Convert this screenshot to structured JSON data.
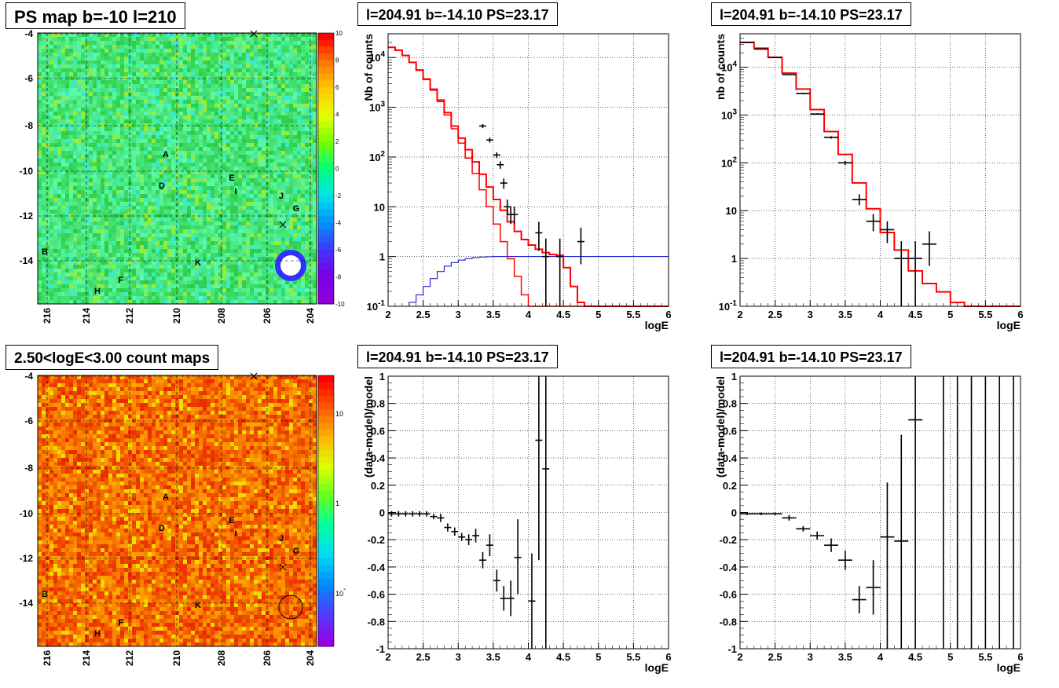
{
  "maps": [
    {
      "title": "PS map b=-10 l=210",
      "yticks": [
        "-4",
        "-6",
        "-8",
        "-10",
        "-12",
        "-14"
      ],
      "xticks": [
        "216",
        "214",
        "212",
        "210",
        "208",
        "206",
        "204"
      ],
      "colorbar": [
        "10",
        "8",
        "6",
        "4",
        "2",
        "0",
        "-2",
        "-4",
        "-6",
        "-8",
        "-10"
      ],
      "palette": "green",
      "sources": [
        "A",
        "D",
        "E",
        "I",
        "J",
        "G",
        "B",
        "K",
        "F",
        "H"
      ]
    },
    {
      "title": "2.50<logE<3.00 count maps",
      "yticks": [
        "-4",
        "-6",
        "-8",
        "-10",
        "-12",
        "-14"
      ],
      "xticks": [
        "216",
        "214",
        "212",
        "210",
        "208",
        "206",
        "204"
      ],
      "colorbar": [
        "10",
        "1",
        "10^-1"
      ],
      "palette": "red",
      "sources": [
        "A",
        "D",
        "E",
        "I",
        "J",
        "G",
        "B",
        "K",
        "F",
        "H"
      ]
    }
  ],
  "chart_data": [
    {
      "type": "line",
      "title": "l=204.91 b=-14.10 PS=23.17",
      "xlabel": "logE",
      "ylabel": "Nb of counts",
      "xlim": [
        2,
        6
      ],
      "ylim": [
        0.1,
        30000
      ],
      "yscale": "log",
      "xticks": [
        "2",
        "2.5",
        "3",
        "3.5",
        "4",
        "4.5",
        "5",
        "5.5",
        "6"
      ],
      "yticks": [
        "10^-1",
        "1",
        "10",
        "10^2",
        "10^3",
        "10^4"
      ],
      "grid": true,
      "model_steps": {
        "x": [
          2.0,
          2.1,
          2.2,
          2.3,
          2.4,
          2.5,
          2.6,
          2.7,
          2.8,
          2.9,
          3.0,
          3.1,
          3.2,
          3.3,
          3.4,
          3.5,
          3.6,
          3.7,
          3.8,
          3.9,
          4.0,
          4.1,
          4.2,
          4.3,
          4.4,
          4.5,
          4.6,
          4.7,
          4.8,
          6.0
        ],
        "y": [
          16000,
          14000,
          11000,
          8000,
          5500,
          3600,
          2200,
          1300,
          700,
          370,
          190,
          95,
          47,
          22,
          10,
          4.5,
          2,
          0.9,
          0.4,
          0.17,
          0.1,
          0.1,
          0.1,
          0.1,
          0.1,
          0.1,
          0.1,
          0.1,
          0.1,
          0.1
        ]
      },
      "red_steps": {
        "x": [
          2.0,
          2.1,
          2.2,
          2.3,
          2.4,
          2.5,
          2.6,
          2.7,
          2.8,
          2.9,
          3.0,
          3.1,
          3.2,
          3.3,
          3.4,
          3.5,
          3.6,
          3.7,
          3.8,
          3.9,
          4.0,
          4.1,
          4.2,
          4.3,
          4.4,
          4.5,
          4.6,
          4.7,
          4.8,
          6.0
        ],
        "y": [
          16000,
          14000,
          11000,
          8000,
          5600,
          3700,
          2300,
          1400,
          780,
          420,
          240,
          140,
          80,
          45,
          25,
          14,
          8.5,
          5,
          3.2,
          2.2,
          1.7,
          1.4,
          1.2,
          1.1,
          1.05,
          0.6,
          0.25,
          0.12,
          0.1,
          0.1
        ]
      },
      "blue_steps": {
        "x": [
          2.0,
          2.1,
          2.2,
          2.3,
          2.4,
          2.5,
          2.6,
          2.7,
          2.8,
          2.9,
          3.0,
          3.1,
          3.2,
          3.3,
          3.4,
          3.5,
          6.0
        ],
        "y": [
          0.1,
          0.1,
          0.1,
          0.12,
          0.17,
          0.25,
          0.36,
          0.5,
          0.64,
          0.76,
          0.85,
          0.91,
          0.95,
          0.98,
          0.99,
          1.0,
          1.0
        ]
      },
      "data_points": [
        {
          "x": 3.35,
          "y": 420,
          "xerr": 0.05,
          "ylo": 380,
          "yhi": 460
        },
        {
          "x": 3.45,
          "y": 220,
          "xerr": 0.05,
          "ylo": 195,
          "yhi": 245
        },
        {
          "x": 3.55,
          "y": 110,
          "xerr": 0.05,
          "ylo": 95,
          "yhi": 125
        },
        {
          "x": 3.6,
          "y": 70,
          "xerr": 0.05,
          "ylo": 58,
          "yhi": 82
        },
        {
          "x": 3.65,
          "y": 30,
          "xerr": 0.05,
          "ylo": 23,
          "yhi": 37
        },
        {
          "x": 3.7,
          "y": 10,
          "xerr": 0.05,
          "ylo": 7,
          "yhi": 14
        },
        {
          "x": 3.75,
          "y": 7,
          "xerr": 0.05,
          "ylo": 4.5,
          "yhi": 10
        },
        {
          "x": 3.8,
          "y": 7,
          "xerr": 0.05,
          "ylo": 4.5,
          "yhi": 10
        },
        {
          "x": 4.15,
          "y": 3,
          "xerr": 0.05,
          "ylo": 1.3,
          "yhi": 5
        },
        {
          "x": 4.25,
          "y": 1,
          "xerr": 0.05,
          "ylo": 0.1,
          "yhi": 2.3
        },
        {
          "x": 4.45,
          "y": 1,
          "xerr": 0.05,
          "ylo": 0.1,
          "yhi": 2.3
        },
        {
          "x": 4.75,
          "y": 2,
          "xerr": 0.05,
          "ylo": 0.7,
          "yhi": 3.8
        }
      ]
    },
    {
      "type": "line",
      "title": "l=204.91 b=-14.10 PS=23.17",
      "xlabel": "logE",
      "ylabel": "nb of counts",
      "xlim": [
        2,
        6
      ],
      "ylim": [
        0.1,
        50000
      ],
      "yscale": "log",
      "xticks": [
        "2",
        "2.5",
        "3",
        "3.5",
        "4",
        "4.5",
        "5",
        "5.5",
        "6"
      ],
      "yticks": [
        "10^-1",
        "1",
        "10",
        "10^2",
        "10^3",
        "10^4"
      ],
      "grid": true,
      "red_steps": {
        "x": [
          2.0,
          2.2,
          2.4,
          2.6,
          2.8,
          3.0,
          3.2,
          3.4,
          3.6,
          3.8,
          4.0,
          4.2,
          4.4,
          4.6,
          4.8,
          5.0,
          5.2,
          6.0
        ],
        "y": [
          33000,
          25000,
          16000,
          7500,
          3500,
          1300,
          450,
          150,
          38,
          11,
          3.5,
          1.5,
          0.55,
          0.3,
          0.2,
          0.12,
          0.1,
          0.1
        ]
      },
      "data_points": [
        {
          "x": 2.1,
          "y": 33000,
          "xerr": 0.1,
          "ylo": 32000,
          "yhi": 34000
        },
        {
          "x": 2.3,
          "y": 24000,
          "xerr": 0.1,
          "ylo": 23500,
          "yhi": 24500
        },
        {
          "x": 2.5,
          "y": 16000,
          "xerr": 0.1,
          "ylo": 15600,
          "yhi": 16400
        },
        {
          "x": 2.7,
          "y": 7000,
          "xerr": 0.1,
          "ylo": 6800,
          "yhi": 7200
        },
        {
          "x": 2.9,
          "y": 2800,
          "xerr": 0.1,
          "ylo": 2700,
          "yhi": 2900
        },
        {
          "x": 3.1,
          "y": 1050,
          "xerr": 0.1,
          "ylo": 1010,
          "yhi": 1090
        },
        {
          "x": 3.3,
          "y": 340,
          "xerr": 0.1,
          "ylo": 320,
          "yhi": 360
        },
        {
          "x": 3.5,
          "y": 100,
          "xerr": 0.1,
          "ylo": 90,
          "yhi": 110
        },
        {
          "x": 3.7,
          "y": 17,
          "xerr": 0.1,
          "ylo": 13,
          "yhi": 22
        },
        {
          "x": 3.9,
          "y": 6,
          "xerr": 0.1,
          "ylo": 3.7,
          "yhi": 8.5
        },
        {
          "x": 4.1,
          "y": 4,
          "xerr": 0.1,
          "ylo": 2.1,
          "yhi": 6
        },
        {
          "x": 4.3,
          "y": 1,
          "xerr": 0.1,
          "ylo": 0.1,
          "yhi": 2.3
        },
        {
          "x": 4.5,
          "y": 1,
          "xerr": 0.1,
          "ylo": 0.1,
          "yhi": 2.3
        },
        {
          "x": 4.7,
          "y": 2,
          "xerr": 0.1,
          "ylo": 0.7,
          "yhi": 3.7
        }
      ]
    },
    {
      "type": "scatter",
      "title": "l=204.91 b=-14.10 PS=23.17",
      "xlabel": "logE",
      "ylabel": "(data-model)/model",
      "xlim": [
        2,
        6
      ],
      "ylim": [
        -1,
        1
      ],
      "xticks": [
        "2",
        "2.5",
        "3",
        "3.5",
        "4",
        "4.5",
        "5",
        "5.5",
        "6"
      ],
      "yticks": [
        "-1",
        "-0.8",
        "-0.6",
        "-0.4",
        "-0.2",
        "0",
        "0.2",
        "0.4",
        "0.6",
        "0.8",
        "1"
      ],
      "grid": true,
      "data_points": [
        {
          "x": 2.05,
          "y": -0.01,
          "xerr": 0.05,
          "ylo": -0.03,
          "yhi": 0.01
        },
        {
          "x": 2.15,
          "y": -0.01,
          "xerr": 0.05,
          "ylo": -0.03,
          "yhi": 0.01
        },
        {
          "x": 2.25,
          "y": -0.01,
          "xerr": 0.05,
          "ylo": -0.03,
          "yhi": 0.01
        },
        {
          "x": 2.35,
          "y": -0.01,
          "xerr": 0.05,
          "ylo": -0.03,
          "yhi": 0.01
        },
        {
          "x": 2.45,
          "y": -0.01,
          "xerr": 0.05,
          "ylo": -0.03,
          "yhi": 0.01
        },
        {
          "x": 2.55,
          "y": -0.01,
          "xerr": 0.05,
          "ylo": -0.03,
          "yhi": 0.01
        },
        {
          "x": 2.65,
          "y": -0.03,
          "xerr": 0.05,
          "ylo": -0.05,
          "yhi": -0.01
        },
        {
          "x": 2.75,
          "y": -0.04,
          "xerr": 0.05,
          "ylo": -0.07,
          "yhi": -0.01
        },
        {
          "x": 2.85,
          "y": -0.11,
          "xerr": 0.05,
          "ylo": -0.14,
          "yhi": -0.08
        },
        {
          "x": 2.95,
          "y": -0.14,
          "xerr": 0.05,
          "ylo": -0.17,
          "yhi": -0.11
        },
        {
          "x": 3.05,
          "y": -0.18,
          "xerr": 0.05,
          "ylo": -0.21,
          "yhi": -0.15
        },
        {
          "x": 3.15,
          "y": -0.2,
          "xerr": 0.05,
          "ylo": -0.24,
          "yhi": -0.16
        },
        {
          "x": 3.25,
          "y": -0.17,
          "xerr": 0.05,
          "ylo": -0.22,
          "yhi": -0.12
        },
        {
          "x": 3.35,
          "y": -0.35,
          "xerr": 0.05,
          "ylo": -0.41,
          "yhi": -0.29
        },
        {
          "x": 3.45,
          "y": -0.24,
          "xerr": 0.05,
          "ylo": -0.32,
          "yhi": -0.16
        },
        {
          "x": 3.55,
          "y": -0.5,
          "xerr": 0.05,
          "ylo": -0.58,
          "yhi": -0.42
        },
        {
          "x": 3.65,
          "y": -0.63,
          "xerr": 0.05,
          "ylo": -0.72,
          "yhi": -0.54
        },
        {
          "x": 3.75,
          "y": -0.63,
          "xerr": 0.05,
          "ylo": -0.76,
          "yhi": -0.5
        },
        {
          "x": 3.85,
          "y": -0.33,
          "xerr": 0.05,
          "ylo": -0.6,
          "yhi": -0.05
        },
        {
          "x": 4.05,
          "y": -0.65,
          "xerr": 0.05,
          "ylo": -1.0,
          "yhi": -0.3
        },
        {
          "x": 4.15,
          "y": 0.53,
          "xerr": 0.05,
          "ylo": -0.35,
          "yhi": 1.0
        },
        {
          "x": 4.25,
          "y": 0.32,
          "xerr": 0.05,
          "ylo": -1.0,
          "yhi": 1.0
        }
      ]
    },
    {
      "type": "scatter",
      "title": "l=204.91 b=-14.10 PS=23.17",
      "xlabel": "logE",
      "ylabel": "(data-model)/model",
      "xlim": [
        2,
        6
      ],
      "ylim": [
        -1,
        1
      ],
      "xticks": [
        "2",
        "2.5",
        "3",
        "3.5",
        "4",
        "4.5",
        "5",
        "5.5",
        "6"
      ],
      "yticks": [
        "-1",
        "-0.8",
        "-0.6",
        "-0.4",
        "-0.2",
        "0",
        "0.2",
        "0.4",
        "0.6",
        "0.8",
        "1"
      ],
      "grid": true,
      "data_points": [
        {
          "x": 2.1,
          "y": -0.01,
          "xerr": 0.1,
          "ylo": -0.02,
          "yhi": 0.0
        },
        {
          "x": 2.3,
          "y": -0.01,
          "xerr": 0.1,
          "ylo": -0.02,
          "yhi": 0.0
        },
        {
          "x": 2.5,
          "y": -0.01,
          "xerr": 0.1,
          "ylo": -0.02,
          "yhi": 0.0
        },
        {
          "x": 2.7,
          "y": -0.04,
          "xerr": 0.1,
          "ylo": -0.06,
          "yhi": -0.02
        },
        {
          "x": 2.9,
          "y": -0.12,
          "xerr": 0.1,
          "ylo": -0.14,
          "yhi": -0.1
        },
        {
          "x": 3.1,
          "y": -0.17,
          "xerr": 0.1,
          "ylo": -0.2,
          "yhi": -0.14
        },
        {
          "x": 3.3,
          "y": -0.24,
          "xerr": 0.1,
          "ylo": -0.29,
          "yhi": -0.19
        },
        {
          "x": 3.5,
          "y": -0.35,
          "xerr": 0.1,
          "ylo": -0.42,
          "yhi": -0.28
        },
        {
          "x": 3.7,
          "y": -0.64,
          "xerr": 0.1,
          "ylo": -0.74,
          "yhi": -0.54
        },
        {
          "x": 3.9,
          "y": -0.55,
          "xerr": 0.1,
          "ylo": -0.75,
          "yhi": -0.35
        },
        {
          "x": 4.1,
          "y": -0.18,
          "xerr": 0.1,
          "ylo": -1.0,
          "yhi": 0.22
        },
        {
          "x": 4.3,
          "y": -0.21,
          "xerr": 0.1,
          "ylo": -1.0,
          "yhi": 0.57
        },
        {
          "x": 4.5,
          "y": 0.68,
          "xerr": 0.1,
          "ylo": -1.0,
          "yhi": 1.0
        },
        {
          "x": 4.9,
          "y": 1.0,
          "xerr": 0.0,
          "ylo": -1.0,
          "yhi": 1.0
        },
        {
          "x": 5.1,
          "y": 1.0,
          "xerr": 0.0,
          "ylo": -1.0,
          "yhi": 1.0
        },
        {
          "x": 5.3,
          "y": 1.0,
          "xerr": 0.0,
          "ylo": -1.0,
          "yhi": 1.0
        },
        {
          "x": 5.5,
          "y": 1.0,
          "xerr": 0.0,
          "ylo": -1.0,
          "yhi": 1.0
        },
        {
          "x": 5.7,
          "y": 1.0,
          "xerr": 0.0,
          "ylo": -1.0,
          "yhi": 1.0
        },
        {
          "x": 5.9,
          "y": 1.0,
          "xerr": 0.0,
          "ylo": -1.0,
          "yhi": 1.0
        }
      ]
    }
  ],
  "colors": {
    "model_red": "#ff0000",
    "blue_curve": "#0000cc",
    "data": "#000000"
  }
}
